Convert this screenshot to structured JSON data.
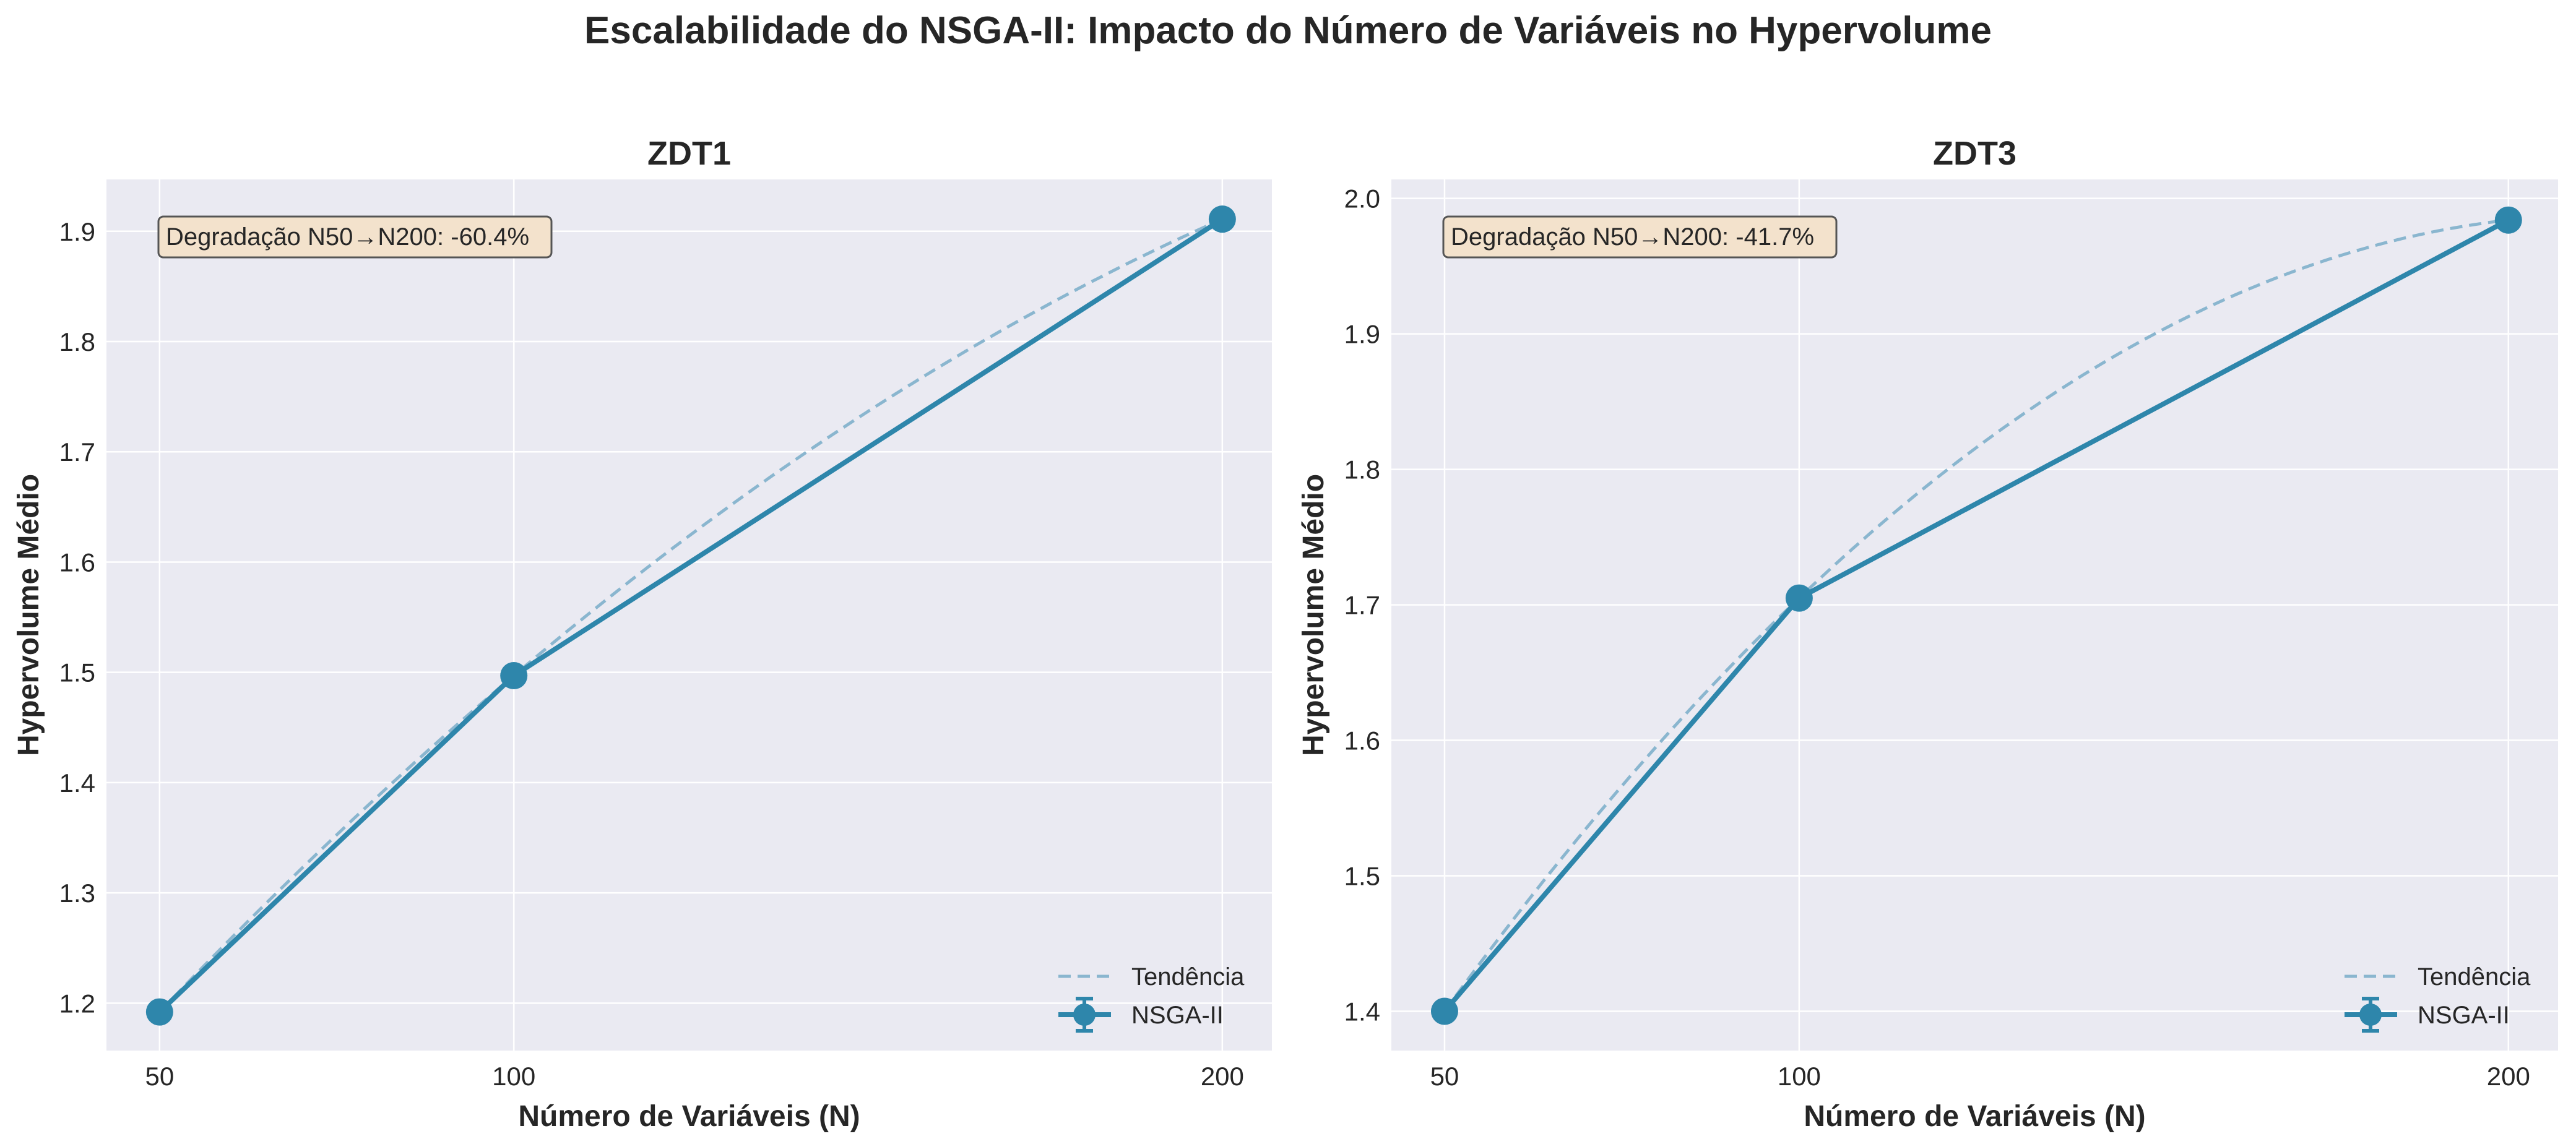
{
  "suptitle": "Escalabilidade do NSGA-II: Impacto do Número de Variáveis no Hypervolume",
  "colors": {
    "series": "#2e86ab",
    "trend": "#8ab6cf",
    "plot_background": "#eaeaf2",
    "grid": "#ffffff",
    "annotation_background": "#f3e2cc"
  },
  "chart_data": [
    {
      "type": "line",
      "title": "ZDT1",
      "xlabel": "Número de Variáveis (N)",
      "ylabel": "Hypervolume Médio",
      "x": [
        50,
        100,
        200
      ],
      "x_ticks": [
        "50",
        "100",
        "200"
      ],
      "xlim": [
        42.5,
        207
      ],
      "ylim": [
        1.157,
        1.947
      ],
      "y_ticks": [
        "1.2",
        "1.3",
        "1.4",
        "1.5",
        "1.6",
        "1.7",
        "1.8",
        "1.9"
      ],
      "y_tick_values": [
        1.2,
        1.3,
        1.4,
        1.5,
        1.6,
        1.7,
        1.8,
        1.9
      ],
      "grid": true,
      "series": [
        {
          "name": "NSGA-II",
          "style": "solid-markers",
          "values": [
            1.192,
            1.497,
            1.911
          ]
        }
      ],
      "trend": {
        "name": "Tendência",
        "style": "dashed",
        "fit": "quadratic",
        "values": [
          1.192,
          1.497,
          1.911
        ]
      },
      "legend": [
        "Tendência",
        "NSGA-II"
      ],
      "legend_position": "bottom-right",
      "annotation": "Degradação N50→N200: -60.4%"
    },
    {
      "type": "line",
      "title": "ZDT3",
      "xlabel": "Número de Variáveis (N)",
      "ylabel": "Hypervolume Médio",
      "x": [
        50,
        100,
        200
      ],
      "x_ticks": [
        "50",
        "100",
        "200"
      ],
      "xlim": [
        42.5,
        207
      ],
      "ylim": [
        1.371,
        2.014
      ],
      "y_ticks": [
        "1.4",
        "1.5",
        "1.6",
        "1.7",
        "1.8",
        "1.9",
        "2.0"
      ],
      "y_tick_values": [
        1.4,
        1.5,
        1.6,
        1.7,
        1.8,
        1.9,
        2.0
      ],
      "grid": true,
      "series": [
        {
          "name": "NSGA-II",
          "style": "solid-markers",
          "values": [
            1.4,
            1.705,
            1.984
          ]
        }
      ],
      "trend": {
        "name": "Tendência",
        "style": "dashed",
        "fit": "quadratic",
        "values": [
          1.4,
          1.705,
          1.984
        ]
      },
      "legend": [
        "Tendência",
        "NSGA-II"
      ],
      "legend_position": "bottom-right",
      "annotation": "Degradação N50→N200: -41.7%"
    }
  ]
}
